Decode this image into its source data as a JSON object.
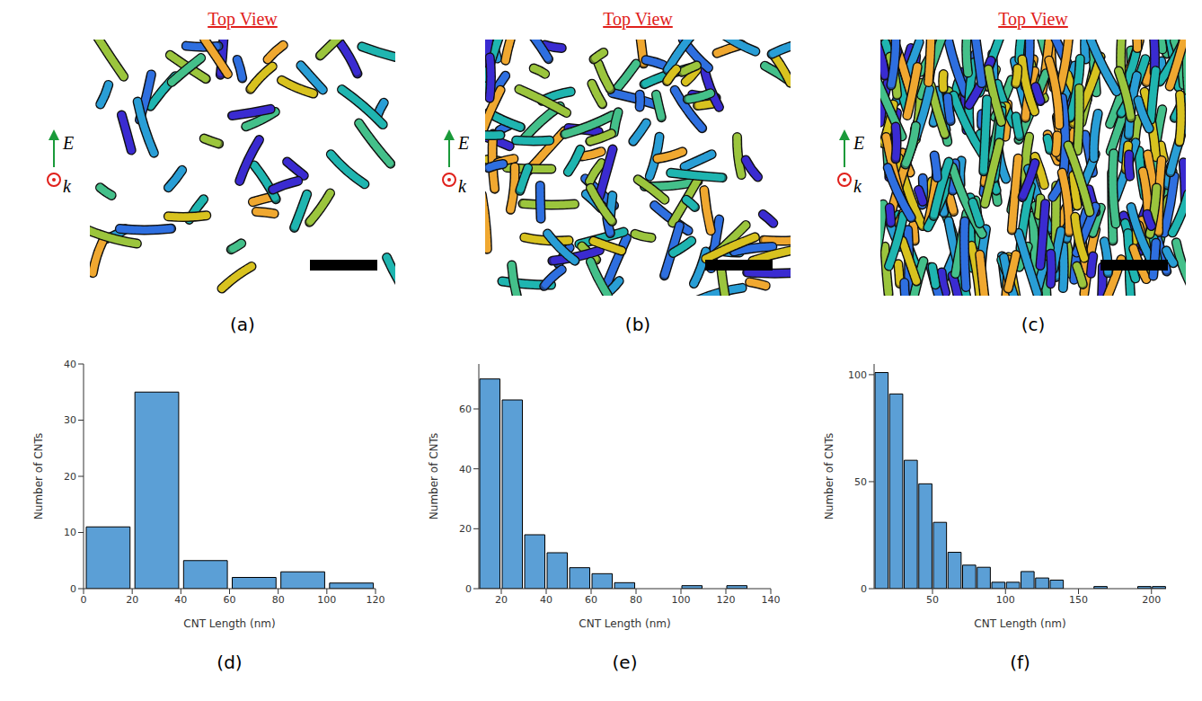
{
  "top_panels": [
    {
      "title": "Top View",
      "field_label": "E",
      "wave_label": "k",
      "annotation": "(a)"
    },
    {
      "title": "Top View",
      "field_label": "E",
      "wave_label": "k",
      "annotation": "(b)"
    },
    {
      "title": "Top View",
      "field_label": "E",
      "wave_label": "k",
      "annotation": "(c)"
    }
  ],
  "chart_data": [
    {
      "type": "histogram",
      "annotation": "(d)",
      "x_label": "CNT Length (nm)",
      "y_label": "Number of CNTs",
      "bins": [
        0,
        20,
        40,
        60,
        80,
        100,
        120
      ],
      "counts": [
        11,
        35,
        5,
        2,
        3,
        1
      ],
      "color": "#5b9fd6",
      "xlim": [
        0,
        120
      ],
      "xticks": [
        0,
        20,
        40,
        60,
        80,
        100,
        120
      ],
      "ylim": [
        0,
        40
      ],
      "yticks": [
        0,
        10,
        20,
        30,
        40
      ]
    },
    {
      "type": "histogram",
      "annotation": "(e)",
      "x_label": "CNT Length (nm)",
      "y_label": "Number of CNTs",
      "bins": [
        10,
        20,
        30,
        40,
        50,
        60,
        70,
        80,
        90,
        100,
        110,
        120,
        130
      ],
      "counts": [
        70,
        63,
        18,
        12,
        7,
        5,
        2,
        0,
        0,
        1,
        0,
        1
      ],
      "color": "#5b9fd6",
      "xlim": [
        10,
        140
      ],
      "xticks": [
        20,
        40,
        60,
        80,
        100,
        120,
        140
      ],
      "ylim": [
        0,
        75
      ],
      "yticks": [
        0,
        20,
        40,
        60
      ]
    },
    {
      "type": "histogram",
      "annotation": "(f)",
      "x_label": "CNT Length (nm)",
      "y_label": "Number of CNTs",
      "bins": [
        10,
        20,
        30,
        40,
        50,
        60,
        70,
        80,
        90,
        100,
        110,
        120,
        130,
        140,
        150,
        160,
        170,
        180,
        190,
        200,
        210
      ],
      "counts": [
        101,
        91,
        60,
        49,
        31,
        17,
        11,
        10,
        3,
        3,
        8,
        5,
        4,
        0,
        0,
        1,
        0,
        0,
        1,
        1
      ],
      "color": "#5b9fd6",
      "xlim": [
        10,
        210
      ],
      "xticks": [
        50,
        100,
        150,
        200
      ],
      "ylim": [
        0,
        105
      ],
      "yticks": [
        0,
        50,
        100
      ]
    }
  ]
}
